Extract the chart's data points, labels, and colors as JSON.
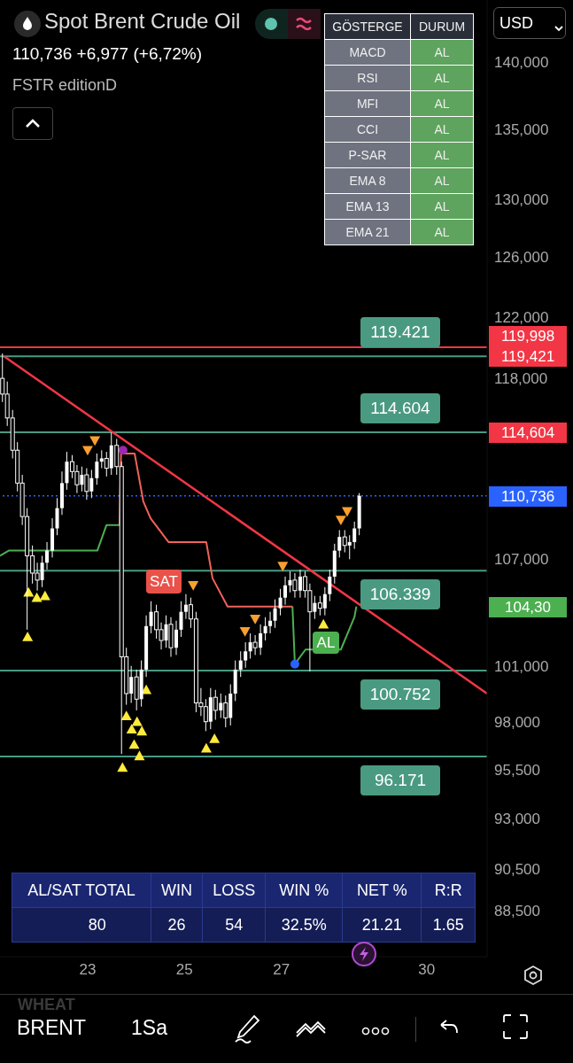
{
  "chart_data": {
    "type": "candlestick",
    "title": "Spot Brent Crude Oil",
    "subtitle": "110,736 +6,977 (+6,72%)",
    "color": "#ffffff",
    "x": [
      21.24,
      21.34,
      21.45,
      21.55,
      21.65,
      21.75,
      21.86,
      21.96,
      22.06,
      22.16,
      22.27,
      22.37,
      22.47,
      22.57,
      22.68,
      22.78,
      22.88,
      22.98,
      23.08,
      23.19,
      23.29,
      23.39,
      23.49,
      23.6,
      23.7,
      23.8,
      23.9,
      24.01,
      24.11,
      24.21,
      24.31,
      24.42,
      24.52,
      24.62,
      24.72,
      24.83,
      24.93,
      25.03,
      25.13,
      25.24,
      25.34,
      25.44,
      25.54,
      25.64,
      25.75,
      25.85,
      25.95,
      26.05,
      26.16,
      26.26,
      26.36,
      26.46,
      26.57,
      26.67,
      26.77,
      26.87,
      26.98,
      27.08,
      27.18,
      27.28,
      27.39,
      27.49,
      27.59,
      27.69,
      27.8,
      27.9,
      28.0,
      28.1,
      28.2,
      28.31,
      28.41,
      28.51,
      28.61
    ],
    "ohlc": [
      [
        118000,
        119600,
        116500,
        117000
      ],
      [
        117000,
        117800,
        115000,
        115500
      ],
      [
        115500,
        116000,
        113000,
        113500
      ],
      [
        113500,
        114000,
        111000,
        111500
      ],
      [
        111500,
        112000,
        109000,
        109500
      ],
      [
        109500,
        110000,
        103000,
        107200
      ],
      [
        107200,
        107800,
        105600,
        106200
      ],
      [
        106200,
        106800,
        105200,
        105800
      ],
      [
        105800,
        107200,
        105400,
        106800
      ],
      [
        106800,
        108000,
        106400,
        107500
      ],
      [
        107500,
        109400,
        107100,
        108800
      ],
      [
        108800,
        110600,
        108400,
        110000
      ],
      [
        110000,
        112200,
        109600,
        111500
      ],
      [
        111500,
        113400,
        111100,
        112800
      ],
      [
        112800,
        113200,
        111800,
        112200
      ],
      [
        112200,
        112600,
        110900,
        111400
      ],
      [
        111400,
        112500,
        111000,
        112000
      ],
      [
        112000,
        112400,
        110500,
        111000
      ],
      [
        111000,
        112300,
        110600,
        111800
      ],
      [
        111800,
        113300,
        111400,
        112800
      ],
      [
        112800,
        113500,
        112400,
        113000
      ],
      [
        113000,
        113400,
        111900,
        112400
      ],
      [
        112400,
        114600,
        112000,
        113800
      ],
      [
        113800,
        114200,
        112000,
        112500
      ],
      [
        112500,
        112800,
        96300,
        101500
      ],
      [
        101500,
        102000,
        98900,
        99500
      ],
      [
        99500,
        101000,
        99000,
        100400
      ],
      [
        100400,
        100800,
        98600,
        99200
      ],
      [
        99200,
        101300,
        98800,
        100800
      ],
      [
        100800,
        103800,
        100400,
        103200
      ],
      [
        103200,
        104600,
        102800,
        104000
      ],
      [
        104000,
        104400,
        102500,
        103000
      ],
      [
        103000,
        103400,
        101900,
        102400
      ],
      [
        102400,
        103800,
        102000,
        103300
      ],
      [
        103300,
        103700,
        101500,
        102000
      ],
      [
        102000,
        103500,
        101600,
        103000
      ],
      [
        103000,
        104600,
        102600,
        104000
      ],
      [
        104000,
        105000,
        103600,
        104400
      ],
      [
        104400,
        104800,
        103100,
        103600
      ],
      [
        103600,
        104000,
        98500,
        99000
      ],
      [
        99000,
        99800,
        98300,
        98800
      ],
      [
        98800,
        99200,
        97500,
        98000
      ],
      [
        98000,
        99800,
        97600,
        99300
      ],
      [
        99300,
        99700,
        98100,
        98600
      ],
      [
        98600,
        99500,
        98200,
        99000
      ],
      [
        99000,
        99400,
        97700,
        98200
      ],
      [
        98200,
        100000,
        97800,
        99500
      ],
      [
        99500,
        101300,
        99100,
        100800
      ],
      [
        100800,
        101800,
        100400,
        101300
      ],
      [
        101300,
        102300,
        100900,
        101800
      ],
      [
        101800,
        102800,
        101400,
        102300
      ],
      [
        102300,
        102700,
        101600,
        102000
      ],
      [
        102000,
        103300,
        101600,
        102800
      ],
      [
        102800,
        103700,
        102400,
        103200
      ],
      [
        103200,
        104000,
        102800,
        103500
      ],
      [
        103500,
        104700,
        103100,
        104200
      ],
      [
        104200,
        105300,
        103800,
        104800
      ],
      [
        104800,
        106000,
        104400,
        105500
      ],
      [
        105500,
        106300,
        105100,
        105800
      ],
      [
        105800,
        106200,
        104800,
        105200
      ],
      [
        105200,
        106400,
        104800,
        106000
      ],
      [
        106000,
        106300,
        104800,
        105200
      ],
      [
        105200,
        105600,
        100700,
        104000
      ],
      [
        104000,
        104900,
        103600,
        104500
      ],
      [
        104500,
        104900,
        103800,
        104200
      ],
      [
        104200,
        105400,
        103800,
        105000
      ],
      [
        105000,
        106400,
        104600,
        106000
      ],
      [
        106000,
        107900,
        105600,
        107500
      ],
      [
        107500,
        108700,
        107100,
        108300
      ],
      [
        108300,
        108700,
        107400,
        107800
      ],
      [
        107800,
        108400,
        107000,
        108000
      ],
      [
        108000,
        109200,
        107600,
        108800
      ],
      [
        108800,
        110900,
        108400,
        110736
      ]
    ],
    "series": [
      {
        "type": "line",
        "color": "#f23645",
        "x": [
          21.28,
          31.25
        ],
        "values": [
          119400,
          99500
        ]
      },
      {
        "type": "line",
        "color": "#4caf50",
        "x": [
          21.19,
          21.37,
          23.2,
          23.39,
          23.66,
          25.44,
          27.23,
          27.28,
          27.5,
          28.23,
          28.51,
          28.55
        ],
        "values": [
          107200,
          107500,
          107500,
          109000,
          109000,
          null,
          104300,
          101100,
          101900,
          101900,
          103700,
          104300
        ]
      },
      {
        "type": "line",
        "color": "#f0635a",
        "x": [
          23.66,
          23.69,
          23.97,
          24.15,
          24.3,
          24.67,
          24.79,
          25.45,
          25.58,
          25.89,
          27.23
        ],
        "values": [
          109000,
          113300,
          113300,
          110400,
          109400,
          108000,
          108000,
          108000,
          105900,
          104300,
          104300
        ]
      },
      {
        "type": "scatter",
        "color": "#ffeb3b",
        "marker": "triangle",
        "x": [
          21.76,
          21.78,
          21.95,
          22.12,
          23.8,
          23.91,
          24.02,
          24.12,
          24.21,
          23.96,
          24.07,
          23.72,
          25.62,
          25.45,
          27.87
        ],
        "values": [
          102600,
          105100,
          104800,
          104900,
          98300,
          97600,
          98000,
          97500,
          99700,
          96800,
          96200,
          95600,
          97100,
          96600,
          103300
        ]
      },
      {
        "type": "scatter",
        "color": "#f7a030",
        "marker": "triangle-down",
        "x": [
          23.0,
          23.15,
          25.18,
          26.25,
          26.46,
          27.03,
          28.23,
          28.36
        ],
        "values": [
          113500,
          114100,
          105500,
          102900,
          103600,
          106600,
          109300,
          109800
        ]
      },
      {
        "type": "scatter",
        "color": "#9c27b0",
        "marker": "circle",
        "x": [
          23.73
        ],
        "values": [
          113500
        ]
      },
      {
        "type": "scatter",
        "color": "#2962ff",
        "marker": "circle",
        "x": [
          27.28
        ],
        "values": [
          101100
        ]
      }
    ],
    "log": true,
    "ylim": [
      86300,
      144800
    ],
    "yticks": [
      {
        "value": 140000,
        "label": "140,000"
      },
      {
        "value": 135000,
        "label": "135,000"
      },
      {
        "value": 130000,
        "label": "130,000"
      },
      {
        "value": 126000,
        "label": "126,000"
      },
      {
        "value": 122000,
        "label": "122,000"
      },
      {
        "value": 118000,
        "label": "118,000"
      },
      {
        "value": 107000,
        "label": "107,000"
      },
      {
        "value": 101000,
        "label": "101,000"
      },
      {
        "value": 98000,
        "label": "98,000"
      },
      {
        "value": 95500,
        "label": "95,500"
      },
      {
        "value": 93000,
        "label": "93,000"
      },
      {
        "value": 90500,
        "label": "90,500"
      },
      {
        "value": 88500,
        "label": "88,500"
      }
    ],
    "xlim": [
      21.19,
      31.25
    ],
    "xticks": [
      23,
      25,
      27,
      30
    ],
    "ref_lines": [
      {
        "axis": "y",
        "value": 119998,
        "label": "119,998",
        "color": "#f23645"
      },
      {
        "axis": "y",
        "value": 119421,
        "label": "119,421",
        "color": "#4a9a82"
      },
      {
        "axis": "y",
        "value": 114604,
        "label": "114,604",
        "color": "#4a9a82"
      },
      {
        "axis": "y",
        "value": 110736,
        "label": "110,736",
        "color": "#2962ff",
        "line_style": "dotted"
      },
      {
        "axis": "y",
        "value": 106339,
        "color": "#4a9a82"
      },
      {
        "axis": "y",
        "value": 100752,
        "color": "#4a9a82"
      },
      {
        "axis": "y",
        "value": 96171,
        "color": "#4a9a82"
      }
    ],
    "annotations": [
      "FSTR editionD",
      "GÖSTERGE",
      "DURUM",
      "MACD",
      "AL",
      "RSI",
      "AL",
      "MFI",
      "AL",
      "CCI",
      "AL",
      "P-SAR",
      "AL",
      "EMA 8",
      "AL",
      "EMA 13",
      "AL",
      "EMA 21",
      "AL",
      "AL/SAT TOTAL",
      "WIN",
      "LOSS",
      "WIN %",
      "NET %",
      "R:R",
      "80",
      "26",
      "54",
      "32.5%",
      "21.21",
      "1.65",
      "USD",
      "WHEAT",
      "BRENT",
      "1Sa",
      "SAT",
      "AL",
      "104,30",
      "119.421",
      "114.604",
      "106.339",
      "100.752",
      "96.171"
    ]
  }
}
